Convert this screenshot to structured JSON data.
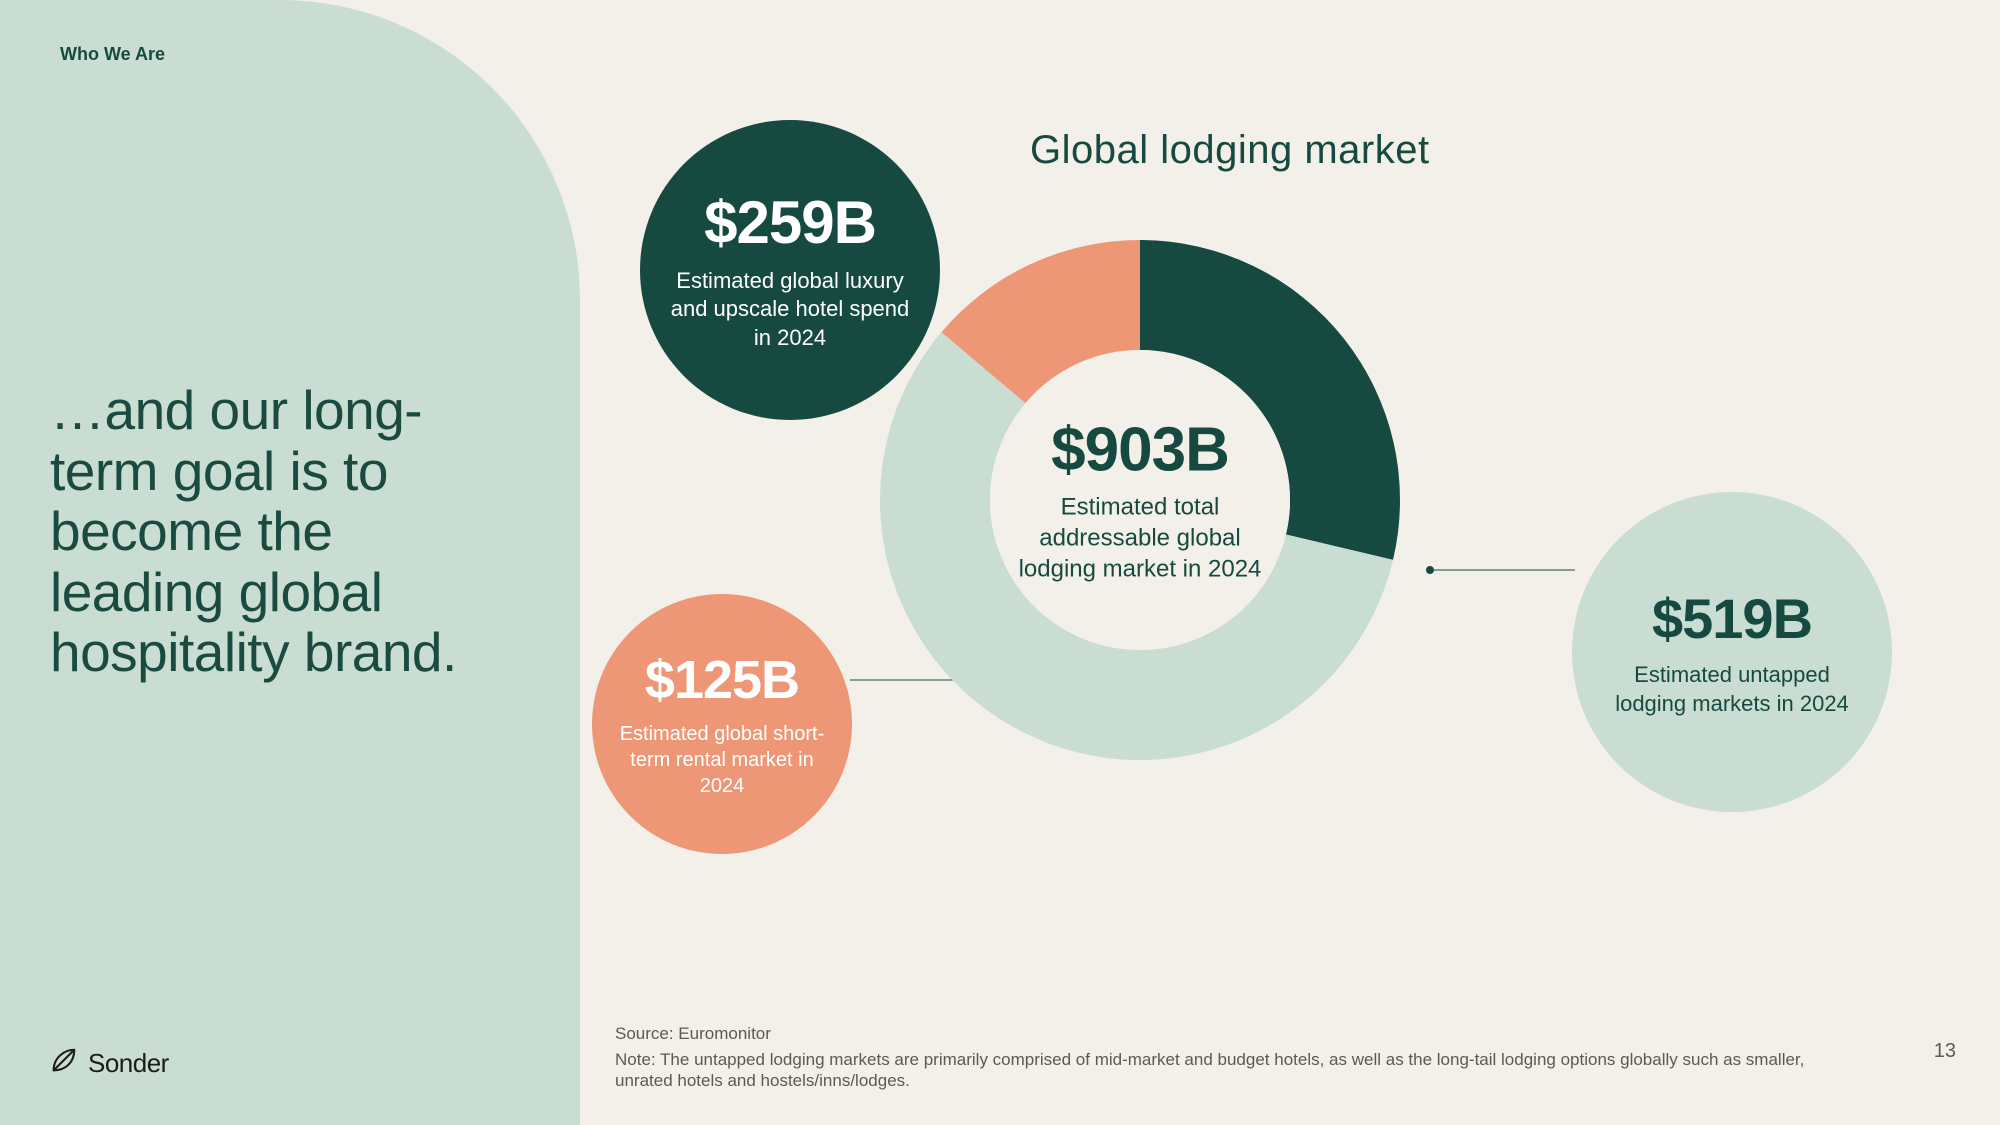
{
  "section_label": "Who We Are",
  "headline": "…and our long-term goal is to become the leading global hospitality brand.",
  "logo_text": "Sonder",
  "chart": {
    "title": "Global lodging market",
    "type": "donut",
    "background_color": "#f3efe9",
    "center": {
      "value": "$903B",
      "label": "Estimated total addressable global lodging market in 2024"
    },
    "segments": [
      {
        "name": "luxury",
        "value": 259,
        "color": "#164a41",
        "start_deg": -90,
        "sweep_deg": 103.3
      },
      {
        "name": "untapped",
        "value": 519,
        "color": "#c9ddd2",
        "start_deg": 13.3,
        "sweep_deg": 206.9
      },
      {
        "name": "rental",
        "value": 125,
        "color": "#ed9776",
        "start_deg": 220.2,
        "sweep_deg": 49.8
      }
    ],
    "donut_outer_r": 260,
    "donut_inner_r": 150,
    "callouts": {
      "luxury": {
        "value": "$259B",
        "label": "Estimated global luxury and upscale hotel spend in 2024",
        "circle_color": "#164a41",
        "text_color": "#ffffff"
      },
      "rental": {
        "value": "$125B",
        "label": "Estimated global short-term rental market in 2024",
        "circle_color": "#ed9776",
        "text_color": "#ffffff"
      },
      "untapped": {
        "value": "$519B",
        "label": "Estimated untapped lodging markets in 2024",
        "circle_color": "#c9ddd2",
        "text_color": "#164a41"
      }
    },
    "connector_color": "#164a41",
    "connector_dot_r": 4
  },
  "footnotes": {
    "source": "Source: Euromonitor",
    "note": "Note: The untapped lodging markets are primarily comprised of mid-market and budget hotels, as well as the long-tail lodging options globally such as smaller, unrated hotels and hostels/inns/lodges."
  },
  "page_number": "13",
  "palette": {
    "bg": "#f3efe9",
    "panel": "#c9ddd2",
    "dark_teal": "#164a41",
    "salmon": "#ed9776",
    "text_muted": "#5a5a56"
  }
}
